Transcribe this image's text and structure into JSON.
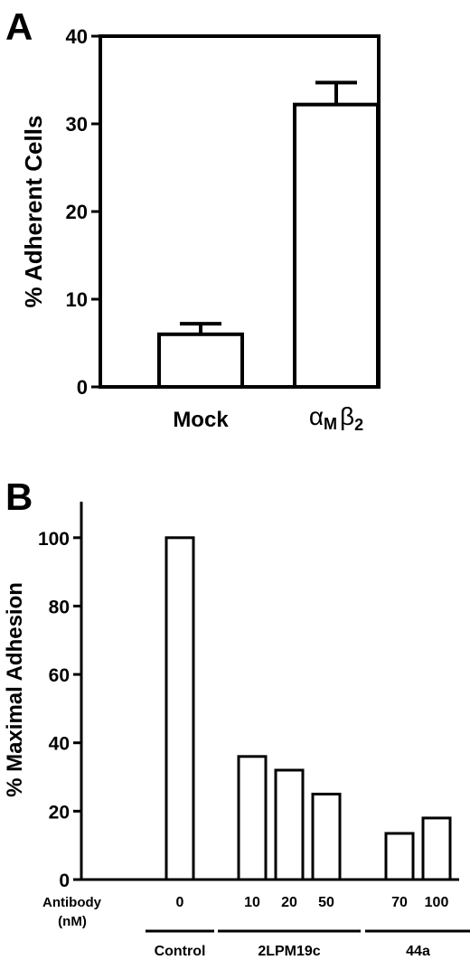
{
  "panels": {
    "a": {
      "letter": "A"
    },
    "b": {
      "letter": "B",
      "antibody_label_line1": "Antibody",
      "antibody_label_line2": "(nM)"
    }
  },
  "chart_data": [
    {
      "type": "bar",
      "ylabel": "% Adherent Cells",
      "ylim": [
        0,
        40
      ],
      "yticks": [
        "0",
        "10",
        "20",
        "30",
        "40"
      ],
      "categories": [
        "Mock",
        "αMβ2"
      ],
      "values": [
        6,
        32.2
      ],
      "error_bars": [
        1.2,
        2.5
      ],
      "bar_fill": "#ffffff",
      "bar_stroke": "#000000"
    },
    {
      "type": "bar",
      "ylabel": "% Maximal Adhesion",
      "ylim": [
        0,
        110
      ],
      "yticks": [
        "0",
        "20",
        "40",
        "60",
        "80",
        "100"
      ],
      "categories": [
        "0",
        "10",
        "20",
        "50",
        "70",
        "100"
      ],
      "values": [
        100,
        36,
        32,
        25,
        13.5,
        18
      ],
      "groups": [
        {
          "label": "Control",
          "members": [
            0
          ]
        },
        {
          "label": "2LPM19c",
          "members": [
            1,
            2,
            3
          ]
        },
        {
          "label": "44a",
          "members": [
            4,
            5
          ]
        }
      ],
      "bar_fill": "#ffffff",
      "bar_stroke": "#000000"
    }
  ]
}
